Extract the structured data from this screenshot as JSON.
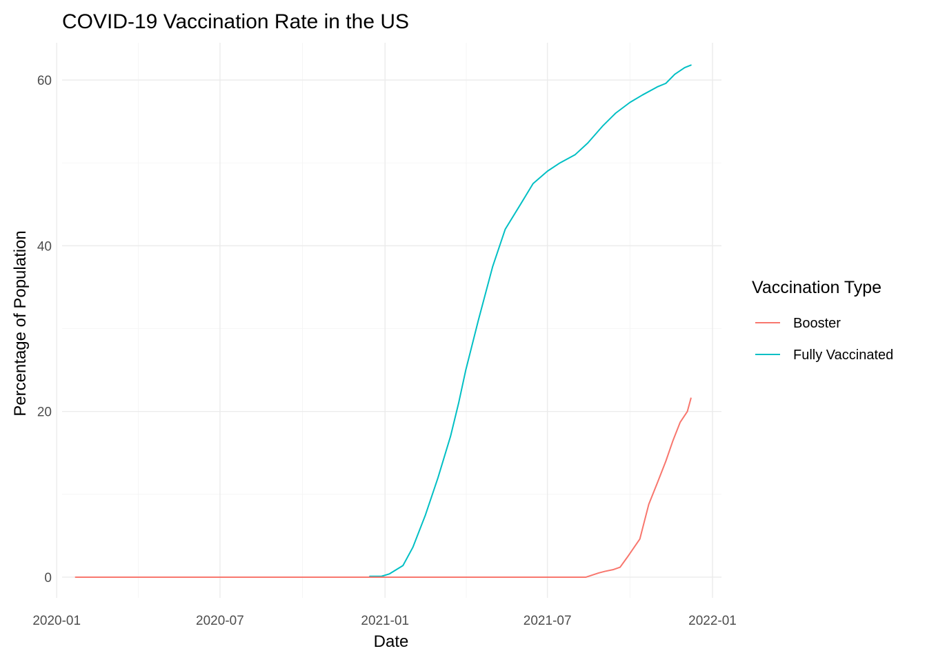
{
  "chart_data": {
    "type": "line",
    "title": "COVID-19 Vaccination Rate in the US",
    "xlabel": "Date",
    "ylabel": "Percentage of Population",
    "x_ticks": [
      "2020-01",
      "2020-07",
      "2021-01",
      "2021-07",
      "2022-01"
    ],
    "y_ticks": [
      0,
      20,
      40,
      60
    ],
    "ylim": [
      -2.5,
      64.5
    ],
    "xlim": [
      "2020-01-07",
      "2022-01-11"
    ],
    "grid": true,
    "legend": {
      "title": "Vaccination Type",
      "placement": "right",
      "entries": [
        "Booster",
        "Fully Vaccinated"
      ]
    },
    "series": [
      {
        "name": "Booster",
        "color": "#F8766D",
        "points": [
          [
            "2020-01-22",
            0
          ],
          [
            "2021-08-13",
            0
          ],
          [
            "2021-08-27",
            0.5
          ],
          [
            "2021-09-03",
            0.7
          ],
          [
            "2021-09-12",
            0.9
          ],
          [
            "2021-09-20",
            1.2
          ],
          [
            "2021-09-28",
            2.4
          ],
          [
            "2021-10-12",
            4.6
          ],
          [
            "2021-10-22",
            8.8
          ],
          [
            "2021-11-01",
            11.5
          ],
          [
            "2021-11-10",
            14.0
          ],
          [
            "2021-11-18",
            16.5
          ],
          [
            "2021-11-26",
            18.7
          ],
          [
            "2021-12-04",
            20.0
          ],
          [
            "2021-12-08",
            21.6
          ]
        ]
      },
      {
        "name": "Fully Vaccinated",
        "color": "#00BFC4",
        "points": [
          [
            "2020-12-15",
            0.1
          ],
          [
            "2020-12-28",
            0.1
          ],
          [
            "2021-01-06",
            0.4
          ],
          [
            "2021-01-21",
            1.4
          ],
          [
            "2021-02-01",
            3.6
          ],
          [
            "2021-02-15",
            7.5
          ],
          [
            "2021-03-01",
            12.0
          ],
          [
            "2021-03-15",
            17.0
          ],
          [
            "2021-03-24",
            21.0
          ],
          [
            "2021-04-01",
            25.0
          ],
          [
            "2021-04-15",
            31.0
          ],
          [
            "2021-05-01",
            37.5
          ],
          [
            "2021-05-15",
            42.0
          ],
          [
            "2021-06-01",
            45.0
          ],
          [
            "2021-06-15",
            47.5
          ],
          [
            "2021-07-01",
            49.0
          ],
          [
            "2021-07-15",
            50.0
          ],
          [
            "2021-08-01",
            51.0
          ],
          [
            "2021-08-15",
            52.4
          ],
          [
            "2021-09-01",
            54.5
          ],
          [
            "2021-09-15",
            56.0
          ],
          [
            "2021-10-01",
            57.3
          ],
          [
            "2021-10-15",
            58.2
          ],
          [
            "2021-11-01",
            59.2
          ],
          [
            "2021-11-10",
            59.6
          ],
          [
            "2021-11-20",
            60.7
          ],
          [
            "2021-12-01",
            61.5
          ],
          [
            "2021-12-08",
            61.8
          ]
        ]
      }
    ]
  }
}
